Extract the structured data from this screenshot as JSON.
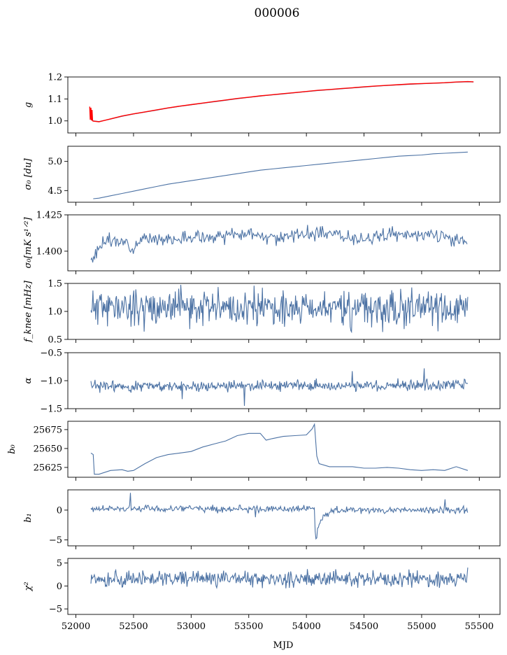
{
  "figure": {
    "title": "000006",
    "xlabel": "MJD"
  },
  "colors": {
    "series": "#4c72a4",
    "highlight": "#ff0000"
  },
  "chart_data": [
    {
      "type": "line",
      "ylabel": "g",
      "xlim": [
        51930,
        55680
      ],
      "ylim": [
        0.945,
        1.2
      ],
      "yticks": [
        1.0,
        1.1,
        1.2
      ],
      "ytick_labels": [
        "1.0",
        "1.1",
        "1.2"
      ],
      "series": [
        {
          "color": "#4c72a4",
          "points": [
            [
              52130,
              1.01
            ],
            [
              52150,
              1.0
            ],
            [
              52200,
              0.997
            ],
            [
              52300,
              1.008
            ],
            [
              52400,
              1.021
            ],
            [
              52500,
              1.031
            ],
            [
              52600,
              1.04
            ],
            [
              52700,
              1.049
            ],
            [
              52800,
              1.058
            ],
            [
              52900,
              1.066
            ],
            [
              53000,
              1.073
            ],
            [
              53100,
              1.08
            ],
            [
              53200,
              1.087
            ],
            [
              53300,
              1.094
            ],
            [
              53400,
              1.101
            ],
            [
              53500,
              1.107
            ],
            [
              53600,
              1.113
            ],
            [
              53700,
              1.118
            ],
            [
              53800,
              1.123
            ],
            [
              53900,
              1.128
            ],
            [
              54000,
              1.133
            ],
            [
              54100,
              1.138
            ],
            [
              54200,
              1.142
            ],
            [
              54300,
              1.146
            ],
            [
              54400,
              1.15
            ],
            [
              54500,
              1.154
            ],
            [
              54600,
              1.158
            ],
            [
              54700,
              1.161
            ],
            [
              54800,
              1.164
            ],
            [
              54900,
              1.167
            ],
            [
              55000,
              1.169
            ],
            [
              55100,
              1.171
            ],
            [
              55200,
              1.173
            ],
            [
              55300,
              1.176
            ],
            [
              55400,
              1.178
            ],
            [
              55450,
              1.177
            ]
          ]
        },
        {
          "color": "#ff0000",
          "points": [
            [
              52120,
              1.065
            ],
            [
              52125,
              1.005
            ],
            [
              52130,
              1.06
            ],
            [
              52135,
              1.002
            ],
            [
              52140,
              1.05
            ],
            [
              52145,
              1.0
            ],
            [
              52150,
              0.999
            ],
            [
              52200,
              0.996
            ],
            [
              52300,
              1.009
            ],
            [
              52400,
              1.022
            ],
            [
              52500,
              1.032
            ],
            [
              52600,
              1.041
            ],
            [
              52700,
              1.05
            ],
            [
              52800,
              1.059
            ],
            [
              52900,
              1.067
            ],
            [
              53000,
              1.074
            ],
            [
              53100,
              1.081
            ],
            [
              53200,
              1.088
            ],
            [
              53300,
              1.095
            ],
            [
              53400,
              1.102
            ],
            [
              53500,
              1.108
            ],
            [
              53600,
              1.114
            ],
            [
              53700,
              1.119
            ],
            [
              53800,
              1.124
            ],
            [
              53900,
              1.129
            ],
            [
              54000,
              1.134
            ],
            [
              54100,
              1.139
            ],
            [
              54200,
              1.143
            ],
            [
              54300,
              1.147
            ],
            [
              54400,
              1.151
            ],
            [
              54500,
              1.155
            ],
            [
              54600,
              1.159
            ],
            [
              54700,
              1.162
            ],
            [
              54800,
              1.165
            ],
            [
              54900,
              1.168
            ],
            [
              55000,
              1.17
            ],
            [
              55100,
              1.172
            ],
            [
              55200,
              1.174
            ],
            [
              55300,
              1.177
            ],
            [
              55400,
              1.179
            ],
            [
              55450,
              1.178
            ]
          ]
        }
      ]
    },
    {
      "type": "line",
      "ylabel": "σ₀ [du]",
      "xlim": [
        51930,
        55680
      ],
      "ylim": [
        4.3,
        5.26
      ],
      "yticks": [
        4.5,
        5.0
      ],
      "ytick_labels": [
        "4.5",
        "5.0"
      ],
      "series": [
        {
          "color": "#4c72a4",
          "points": [
            [
              52150,
              4.36
            ],
            [
              52200,
              4.37
            ],
            [
              52300,
              4.41
            ],
            [
              52400,
              4.45
            ],
            [
              52500,
              4.49
            ],
            [
              52600,
              4.53
            ],
            [
              52700,
              4.57
            ],
            [
              52800,
              4.61
            ],
            [
              52900,
              4.64
            ],
            [
              53000,
              4.67
            ],
            [
              53100,
              4.7
            ],
            [
              53200,
              4.73
            ],
            [
              53300,
              4.76
            ],
            [
              53400,
              4.79
            ],
            [
              53500,
              4.82
            ],
            [
              53600,
              4.85
            ],
            [
              53700,
              4.87
            ],
            [
              53800,
              4.89
            ],
            [
              53900,
              4.91
            ],
            [
              54000,
              4.93
            ],
            [
              54100,
              4.95
            ],
            [
              54200,
              4.97
            ],
            [
              54300,
              4.99
            ],
            [
              54400,
              5.01
            ],
            [
              54500,
              5.03
            ],
            [
              54600,
              5.05
            ],
            [
              54700,
              5.07
            ],
            [
              54800,
              5.09
            ],
            [
              54900,
              5.1
            ],
            [
              55000,
              5.11
            ],
            [
              55100,
              5.13
            ],
            [
              55200,
              5.14
            ],
            [
              55300,
              5.15
            ],
            [
              55400,
              5.16
            ]
          ]
        }
      ]
    },
    {
      "type": "line",
      "ylabel": "σ₀[mK s¹ᐟ²]",
      "xlim": [
        51930,
        55680
      ],
      "ylim": [
        1.3865,
        1.425
      ],
      "yticks": [
        1.4,
        1.425
      ],
      "ytick_labels": [
        "1.400",
        "1.425"
      ],
      "noise": {
        "x_start": 52130,
        "x_end": 55400,
        "step": 8,
        "amplitude": 0.0028,
        "seed": 3
      },
      "series": [
        {
          "color": "#4c72a4",
          "points": [
            [
              52130,
              1.394
            ],
            [
              52150,
              1.393
            ],
            [
              52180,
              1.399
            ],
            [
              52220,
              1.406
            ],
            [
              52300,
              1.407
            ],
            [
              52400,
              1.406
            ],
            [
              52500,
              1.404
            ],
            [
              52600,
              1.408
            ],
            [
              52700,
              1.41
            ],
            [
              52800,
              1.408
            ],
            [
              52900,
              1.408
            ],
            [
              53000,
              1.41
            ],
            [
              53100,
              1.41
            ],
            [
              53200,
              1.409
            ],
            [
              53300,
              1.41
            ],
            [
              53400,
              1.411
            ],
            [
              53500,
              1.412
            ],
            [
              53600,
              1.411
            ],
            [
              53700,
              1.41
            ],
            [
              53800,
              1.409
            ],
            [
              53900,
              1.411
            ],
            [
              54000,
              1.412
            ],
            [
              54100,
              1.412
            ],
            [
              54200,
              1.412
            ],
            [
              54300,
              1.411
            ],
            [
              54400,
              1.41
            ],
            [
              54500,
              1.409
            ],
            [
              54600,
              1.41
            ],
            [
              54700,
              1.411
            ],
            [
              54800,
              1.411
            ],
            [
              54900,
              1.411
            ],
            [
              55000,
              1.411
            ],
            [
              55100,
              1.411
            ],
            [
              55200,
              1.41
            ],
            [
              55300,
              1.408
            ],
            [
              55400,
              1.405
            ]
          ]
        }
      ]
    },
    {
      "type": "line",
      "ylabel": "f_knee [mHz]",
      "xlim": [
        51930,
        55680
      ],
      "ylim": [
        0.5,
        1.5
      ],
      "yticks": [
        0.5,
        1.0,
        1.5
      ],
      "ytick_labels": [
        "0.5",
        "1.0",
        "1.5"
      ],
      "noise": {
        "x_start": 52130,
        "x_end": 55400,
        "step": 6,
        "amplitude": 0.2,
        "seed": 11,
        "clip": [
          0.55,
          1.5
        ]
      },
      "series": [
        {
          "color": "#4c72a4",
          "points": [
            [
              52130,
              1.08
            ],
            [
              55400,
              1.04
            ]
          ]
        }
      ]
    },
    {
      "type": "line",
      "ylabel": "α",
      "xlim": [
        51930,
        55680
      ],
      "ylim": [
        -1.5,
        -0.5
      ],
      "yticks": [
        -1.5,
        -1.0,
        -0.5
      ],
      "ytick_labels": [
        "−1.5",
        "−1.0",
        "−0.5"
      ],
      "noise": {
        "x_start": 52130,
        "x_end": 55400,
        "step": 6,
        "amplitude": 0.06,
        "seed": 23,
        "spikes": [
          [
            52920,
            -1.33
          ],
          [
            53460,
            -1.45
          ],
          [
            54400,
            -0.83
          ],
          [
            55020,
            -0.78
          ]
        ]
      },
      "series": [
        {
          "color": "#4c72a4",
          "points": [
            [
              52130,
              -1.1
            ],
            [
              55400,
              -1.08
            ]
          ]
        }
      ]
    },
    {
      "type": "line",
      "ylabel": "b₀",
      "xlim": [
        51930,
        55680
      ],
      "ylim": [
        25612,
        25686
      ],
      "yticks": [
        25625,
        25650,
        25675
      ],
      "ytick_labels": [
        "25625",
        "25650",
        "25675"
      ],
      "series": [
        {
          "color": "#4c72a4",
          "points": [
            [
              52130,
              25644
            ],
            [
              52150,
              25642
            ],
            [
              52160,
              25616
            ],
            [
              52200,
              25616
            ],
            [
              52300,
              25621
            ],
            [
              52400,
              25622
            ],
            [
              52450,
              25620
            ],
            [
              52500,
              25621
            ],
            [
              52600,
              25630
            ],
            [
              52700,
              25638
            ],
            [
              52800,
              25642
            ],
            [
              52900,
              25644
            ],
            [
              53000,
              25646
            ],
            [
              53100,
              25652
            ],
            [
              53200,
              25656
            ],
            [
              53300,
              25660
            ],
            [
              53400,
              25667
            ],
            [
              53500,
              25670
            ],
            [
              53600,
              25670
            ],
            [
              53650,
              25661
            ],
            [
              53700,
              25663
            ],
            [
              53800,
              25666
            ],
            [
              53900,
              25667
            ],
            [
              54000,
              25668
            ],
            [
              54050,
              25676
            ],
            [
              54070,
              25682
            ],
            [
              54090,
              25640
            ],
            [
              54110,
              25630
            ],
            [
              54200,
              25626
            ],
            [
              54300,
              25626
            ],
            [
              54400,
              25626
            ],
            [
              54500,
              25624
            ],
            [
              54600,
              25624
            ],
            [
              54700,
              25625
            ],
            [
              54800,
              25624
            ],
            [
              54900,
              25622
            ],
            [
              55000,
              25621
            ],
            [
              55100,
              25622
            ],
            [
              55200,
              25621
            ],
            [
              55300,
              25626
            ],
            [
              55400,
              25621
            ]
          ]
        }
      ]
    },
    {
      "type": "line",
      "ylabel": "b₁",
      "xlim": [
        51930,
        55680
      ],
      "ylim": [
        -6,
        3.4
      ],
      "yticks": [
        -5,
        0
      ],
      "ytick_labels": [
        "−5",
        "0"
      ],
      "noise": {
        "x_start": 52130,
        "x_end": 55400,
        "step": 7,
        "amplitude": 0.35,
        "seed": 41,
        "spikes": [
          [
            52470,
            2.9
          ],
          [
            53560,
            -1.2
          ],
          [
            55200,
            1.8
          ]
        ]
      },
      "series": [
        {
          "color": "#4c72a4",
          "points": [
            [
              52130,
              0.2
            ],
            [
              54050,
              0.2
            ],
            [
              54070,
              0.3
            ],
            [
              54080,
              -5.5
            ],
            [
              54100,
              -3.0
            ],
            [
              54150,
              -1.0
            ],
            [
              54250,
              0.0
            ],
            [
              55400,
              0.0
            ]
          ]
        }
      ]
    },
    {
      "type": "line",
      "ylabel": "χ²",
      "xlim": [
        51930,
        55680
      ],
      "ylim": [
        -6.2,
        6
      ],
      "yticks": [
        -5,
        0,
        5
      ],
      "ytick_labels": [
        "−5",
        "0",
        "5"
      ],
      "noise": {
        "x_start": 52130,
        "x_end": 55400,
        "step": 6,
        "amplitude": 1.1,
        "seed": 59
      },
      "series": [
        {
          "color": "#4c72a4",
          "points": [
            [
              52130,
              1.5
            ],
            [
              55400,
              1.5
            ]
          ]
        }
      ]
    }
  ],
  "xaxis": {
    "ticks": [
      52000,
      52500,
      53000,
      53500,
      54000,
      54500,
      55000,
      55500
    ],
    "tick_labels": [
      "52000",
      "52500",
      "53000",
      "53500",
      "54000",
      "54500",
      "55000",
      "55500"
    ]
  }
}
